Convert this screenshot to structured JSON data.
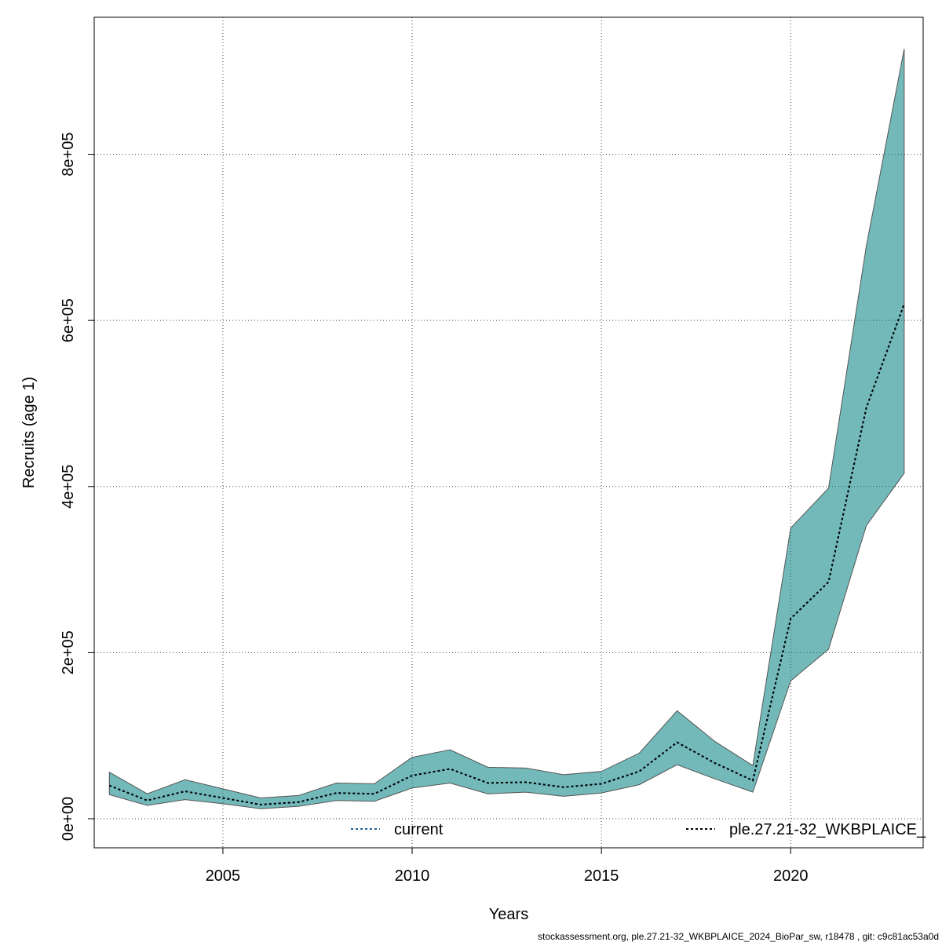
{
  "chart_data": {
    "type": "area",
    "xlabel": "Years",
    "ylabel": "Recruits (age 1)",
    "xlim": [
      2001.6,
      2023.5
    ],
    "ylim": [
      -35000,
      965000
    ],
    "x_ticks": [
      2005,
      2010,
      2015,
      2020
    ],
    "x_tick_labels": [
      "2005",
      "2010",
      "2015",
      "2020"
    ],
    "y_ticks": [
      0,
      200000,
      400000,
      600000,
      800000
    ],
    "y_tick_labels": [
      "0e+00",
      "2e+05",
      "4e+05",
      "6e+05",
      "8e+05"
    ],
    "grid": true,
    "x": [
      2002,
      2003,
      2004,
      2005,
      2006,
      2007,
      2008,
      2009,
      2010,
      2011,
      2012,
      2013,
      2014,
      2015,
      2016,
      2017,
      2018,
      2019,
      2020,
      2021,
      2022,
      2023
    ],
    "series": [
      {
        "name": "current",
        "color": "#1f5f9a",
        "style": "dotted",
        "values": [
          40000,
          22000,
          33000,
          25000,
          17000,
          20000,
          31000,
          30000,
          52000,
          60000,
          43000,
          44000,
          38000,
          42000,
          57000,
          92000,
          67000,
          46000,
          241000,
          285000,
          495000,
          620000
        ]
      },
      {
        "name": "ple.27.21-32_WKBPLAICE_",
        "color": "#000000",
        "style": "dotted",
        "values": [
          40000,
          22000,
          33000,
          25000,
          17000,
          20000,
          31000,
          30000,
          52000,
          60000,
          43000,
          44000,
          38000,
          42000,
          57000,
          92000,
          67000,
          46000,
          241000,
          285000,
          495000,
          620000
        ],
        "upper": [
          56000,
          30000,
          47000,
          36000,
          25000,
          28000,
          43000,
          42000,
          74000,
          83000,
          62000,
          61000,
          53000,
          57000,
          79000,
          130000,
          93000,
          64000,
          350000,
          398000,
          690000,
          927000
        ],
        "lower": [
          29000,
          16000,
          23000,
          18000,
          12000,
          15000,
          22000,
          21000,
          37000,
          43000,
          30000,
          32000,
          27000,
          31000,
          41000,
          65000,
          48000,
          32000,
          166000,
          204000,
          353000,
          416000
        ]
      }
    ],
    "band_color": "#008080",
    "legend": {
      "placement": "bottom",
      "entries": [
        "current",
        "ple.27.21-32_WKBPLAICE_"
      ]
    }
  },
  "footer": {
    "text": "stockassessment.org, ple.27.21-32_WKBPLAICE_2024_BioPar_sw, r18478 , git: c9c81ac53a0d"
  }
}
